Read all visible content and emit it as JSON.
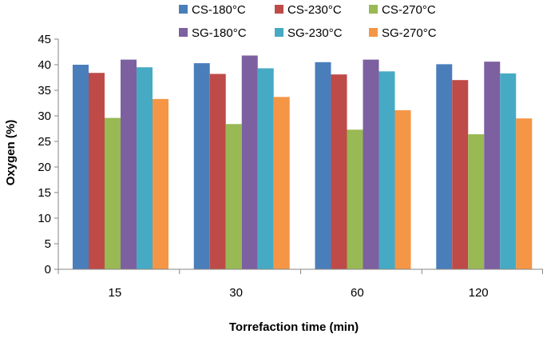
{
  "chart_data": {
    "type": "bar",
    "title": "",
    "xlabel": "Torrefaction time (min)",
    "ylabel": "Oxygen (%)",
    "ylim": [
      0,
      45
    ],
    "yticks": [
      0,
      5,
      10,
      15,
      20,
      25,
      30,
      35,
      40,
      45
    ],
    "grid": false,
    "legend_position": "top",
    "categories": [
      "15",
      "30",
      "60",
      "120"
    ],
    "series": [
      {
        "name": "CS-180°C",
        "color": "#4a7ebb",
        "values": [
          40.0,
          40.3,
          40.5,
          40.1
        ]
      },
      {
        "name": "CS-230°C",
        "color": "#be4b48",
        "values": [
          38.4,
          38.2,
          38.1,
          37.0
        ]
      },
      {
        "name": "CS-270°C",
        "color": "#98b954",
        "values": [
          29.6,
          28.4,
          27.3,
          26.4
        ]
      },
      {
        "name": "SG-180°C",
        "color": "#7d60a0",
        "values": [
          41.0,
          41.8,
          41.0,
          40.6
        ]
      },
      {
        "name": "SG-230°C",
        "color": "#46aac5",
        "values": [
          39.5,
          39.3,
          38.7,
          38.3
        ]
      },
      {
        "name": "SG-270°C",
        "color": "#f49646",
        "values": [
          33.3,
          33.7,
          31.1,
          29.5
        ]
      }
    ]
  }
}
